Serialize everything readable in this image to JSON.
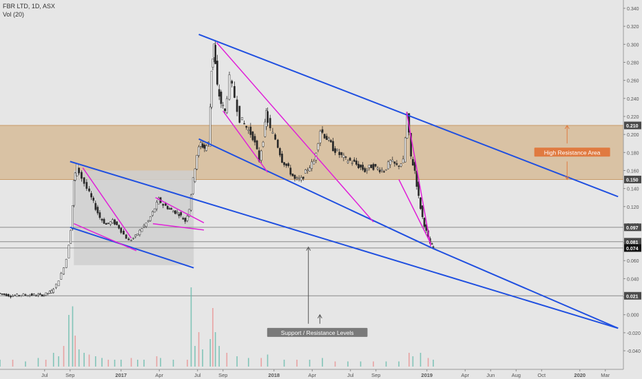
{
  "chart_data": {
    "type": "candlestick",
    "symbol_label": "FBR LTD, 1D, ASX",
    "indicator_label": "Vol (20)",
    "price_axis": {
      "range": [
        -0.048,
        0.344
      ],
      "ticks": [
        "0.340",
        "0.320",
        "0.300",
        "0.280",
        "0.260",
        "0.240",
        "0.220",
        "0.200",
        "0.180",
        "0.160",
        "0.140",
        "0.120",
        "0.100",
        "0.080",
        "0.060",
        "0.040",
        "0.020",
        "0.000",
        "-0.020",
        "-0.040"
      ]
    },
    "time_axis": {
      "ticks": [
        {
          "label": "Jul",
          "t": 3.5
        },
        {
          "label": "Sep",
          "t": 5.5
        },
        {
          "label": "2017",
          "t": 9.5
        },
        {
          "label": "Apr",
          "t": 12.5
        },
        {
          "label": "Jul",
          "t": 15.5
        },
        {
          "label": "Sep",
          "t": 17.5
        },
        {
          "label": "2018",
          "t": 21.5
        },
        {
          "label": "Apr",
          "t": 24.5
        },
        {
          "label": "Jul",
          "t": 27.5
        },
        {
          "label": "Sep",
          "t": 29.5
        },
        {
          "label": "2019",
          "t": 33.5
        },
        {
          "label": "Apr",
          "t": 36.5
        },
        {
          "label": "Jun",
          "t": 38.5
        },
        {
          "label": "Aug",
          "t": 40.5
        },
        {
          "label": "Oct",
          "t": 42.5
        },
        {
          "label": "2020",
          "t": 45.5
        },
        {
          "label": "Mar",
          "t": 47.5
        }
      ]
    },
    "price_path": [
      [
        0.0,
        0.024
      ],
      [
        1.0,
        0.021
      ],
      [
        2.0,
        0.022
      ],
      [
        3.0,
        0.022
      ],
      [
        3.6,
        0.022
      ],
      [
        4.2,
        0.026
      ],
      [
        4.6,
        0.033
      ],
      [
        5.0,
        0.045
      ],
      [
        5.4,
        0.062
      ],
      [
        5.7,
        0.095
      ],
      [
        5.9,
        0.148
      ],
      [
        6.2,
        0.165
      ],
      [
        6.6,
        0.152
      ],
      [
        7.0,
        0.14
      ],
      [
        7.5,
        0.124
      ],
      [
        8.0,
        0.108
      ],
      [
        8.5,
        0.1
      ],
      [
        9.0,
        0.104
      ],
      [
        9.5,
        0.097
      ],
      [
        9.9,
        0.089
      ],
      [
        10.3,
        0.082
      ],
      [
        10.8,
        0.087
      ],
      [
        11.3,
        0.096
      ],
      [
        11.8,
        0.104
      ],
      [
        12.3,
        0.118
      ],
      [
        12.6,
        0.128
      ],
      [
        13.0,
        0.122
      ],
      [
        13.6,
        0.116
      ],
      [
        14.2,
        0.112
      ],
      [
        14.7,
        0.104
      ],
      [
        15.0,
        0.118
      ],
      [
        15.3,
        0.15
      ],
      [
        15.6,
        0.178
      ],
      [
        15.9,
        0.19
      ],
      [
        16.2,
        0.185
      ],
      [
        16.5,
        0.19
      ],
      [
        16.7,
        0.272
      ],
      [
        16.9,
        0.3
      ],
      [
        17.2,
        0.252
      ],
      [
        17.5,
        0.235
      ],
      [
        17.8,
        0.225
      ],
      [
        18.2,
        0.262
      ],
      [
        18.6,
        0.242
      ],
      [
        19.0,
        0.218
      ],
      [
        19.5,
        0.208
      ],
      [
        20.0,
        0.198
      ],
      [
        20.5,
        0.172
      ],
      [
        20.8,
        0.195
      ],
      [
        21.0,
        0.225
      ],
      [
        21.4,
        0.205
      ],
      [
        21.8,
        0.195
      ],
      [
        22.3,
        0.172
      ],
      [
        22.8,
        0.162
      ],
      [
        23.3,
        0.15
      ],
      [
        23.8,
        0.15
      ],
      [
        24.3,
        0.162
      ],
      [
        24.8,
        0.17
      ],
      [
        25.3,
        0.205
      ],
      [
        25.8,
        0.196
      ],
      [
        26.3,
        0.185
      ],
      [
        26.8,
        0.178
      ],
      [
        27.3,
        0.172
      ],
      [
        27.8,
        0.17
      ],
      [
        28.3,
        0.165
      ],
      [
        28.8,
        0.16
      ],
      [
        29.3,
        0.165
      ],
      [
        29.8,
        0.162
      ],
      [
        30.3,
        0.16
      ],
      [
        30.8,
        0.17
      ],
      [
        31.3,
        0.165
      ],
      [
        31.8,
        0.17
      ],
      [
        32.1,
        0.222
      ],
      [
        32.4,
        0.175
      ],
      [
        32.7,
        0.16
      ],
      [
        33.0,
        0.13
      ],
      [
        33.3,
        0.108
      ],
      [
        33.6,
        0.092
      ],
      [
        33.9,
        0.079
      ],
      [
        34.1,
        0.075
      ]
    ],
    "volume": [
      [
        0,
        0.004
      ],
      [
        1,
        0.004
      ],
      [
        2,
        0.003
      ],
      [
        3,
        0.005
      ],
      [
        3.6,
        0.004
      ],
      [
        4.2,
        0.008
      ],
      [
        4.6,
        0.006
      ],
      [
        5.0,
        0.012
      ],
      [
        5.4,
        0.03
      ],
      [
        5.7,
        0.035
      ],
      [
        5.9,
        0.018
      ],
      [
        6.2,
        0.01
      ],
      [
        6.6,
        0.008
      ],
      [
        7.0,
        0.007
      ],
      [
        7.5,
        0.006
      ],
      [
        8.0,
        0.005
      ],
      [
        8.5,
        0.004
      ],
      [
        9.0,
        0.004
      ],
      [
        9.5,
        0.004
      ],
      [
        10.3,
        0.005
      ],
      [
        10.8,
        0.004
      ],
      [
        11.3,
        0.004
      ],
      [
        12.3,
        0.006
      ],
      [
        12.6,
        0.005
      ],
      [
        13.6,
        0.004
      ],
      [
        14.7,
        0.004
      ],
      [
        15.0,
        0.046
      ],
      [
        15.3,
        0.012
      ],
      [
        15.6,
        0.02
      ],
      [
        15.9,
        0.01
      ],
      [
        16.5,
        0.016
      ],
      [
        16.7,
        0.034
      ],
      [
        16.9,
        0.02
      ],
      [
        17.2,
        0.012
      ],
      [
        17.8,
        0.008
      ],
      [
        18.6,
        0.006
      ],
      [
        19.5,
        0.005
      ],
      [
        20.5,
        0.005
      ],
      [
        21.0,
        0.007
      ],
      [
        22.3,
        0.004
      ],
      [
        23.3,
        0.004
      ],
      [
        24.3,
        0.004
      ],
      [
        25.3,
        0.005
      ],
      [
        26.3,
        0.003
      ],
      [
        27.3,
        0.003
      ],
      [
        28.3,
        0.003
      ],
      [
        29.3,
        0.003
      ],
      [
        30.3,
        0.003
      ],
      [
        31.3,
        0.003
      ],
      [
        32.1,
        0.008
      ],
      [
        32.4,
        0.006
      ],
      [
        33.0,
        0.008
      ],
      [
        33.6,
        0.005
      ],
      [
        34.0,
        0.004
      ]
    ],
    "horizontal_levels": [
      {
        "value": 0.21,
        "label": "0.210"
      },
      {
        "value": 0.15,
        "label": "0.150"
      },
      {
        "value": 0.097,
        "label": "0.097"
      },
      {
        "value": 0.081,
        "label": "0.081"
      },
      {
        "value": 0.074,
        "label": "0.074",
        "current": true
      },
      {
        "value": 0.021,
        "label": "0.021"
      }
    ],
    "resistance_zone": {
      "from": 0.15,
      "to": 0.21
    },
    "consolidation_box": {
      "t_start": 5.8,
      "t_end": 15.2,
      "from": 0.055,
      "to": 0.16
    },
    "blue_trendlines": [
      {
        "t1": 15.6,
        "v1": 0.311,
        "t2": 48.5,
        "v2": 0.131
      },
      {
        "t1": 5.5,
        "v1": 0.17,
        "t2": 48.5,
        "v2": -0.015
      },
      {
        "t1": 15.6,
        "v1": 0.195,
        "t2": 33.9,
        "v2": 0.074
      },
      {
        "t1": 5.5,
        "v1": 0.097,
        "t2": 15.2,
        "v2": 0.052
      },
      {
        "t1": 33.9,
        "v1": 0.074,
        "t2": 48.5,
        "v2": -0.015
      }
    ],
    "magenta_trendlines": [
      {
        "t1": 6.5,
        "v1": 0.163,
        "t2": 10.3,
        "v2": 0.085
      },
      {
        "t1": 5.8,
        "v1": 0.101,
        "t2": 10.7,
        "v2": 0.071
      },
      {
        "t1": 12.2,
        "v1": 0.13,
        "t2": 16.0,
        "v2": 0.102
      },
      {
        "t1": 12.0,
        "v1": 0.101,
        "t2": 16.0,
        "v2": 0.094
      },
      {
        "t1": 17.0,
        "v1": 0.302,
        "t2": 29.3,
        "v2": 0.103
      },
      {
        "t1": 17.5,
        "v1": 0.226,
        "t2": 21.0,
        "v2": 0.158
      },
      {
        "t1": 31.9,
        "v1": 0.225,
        "t2": 33.8,
        "v2": 0.076
      },
      {
        "t1": 31.3,
        "v1": 0.15,
        "t2": 33.8,
        "v2": 0.079
      }
    ],
    "annotations": [
      {
        "text": "High Resistance Area",
        "t": 44.9,
        "v": 0.18
      },
      {
        "text": "Support / Resistance Levels",
        "t": 24.9,
        "v": -0.02
      }
    ],
    "arrows": [
      {
        "t": 44.5,
        "v_from": 0.19,
        "v_to": 0.21
      },
      {
        "t": 44.5,
        "v_from": 0.17,
        "v_to": 0.15
      },
      {
        "t": 24.2,
        "v_from": -0.01,
        "v_to": 0.075
      },
      {
        "t": 25.1,
        "v_from": -0.01,
        "v_to": 0.0
      }
    ],
    "colors": {
      "background": "#e6e6e6",
      "resistance_zone": "#d9c2a4",
      "resistance_zone_border": "#c89a68",
      "consolidation_box": "#cfcfcf",
      "candles": "#2a2a2a",
      "blue_lines": "#1f4fe0",
      "magenta_lines": "#e020d8",
      "level_lines": "#8a8a8a",
      "volume_up": "#5fb8a8",
      "volume_down": "#e88b8b",
      "label_bg": "#4a4a4a",
      "current_label_bg": "#111111",
      "arrow": "#e07a40"
    }
  }
}
